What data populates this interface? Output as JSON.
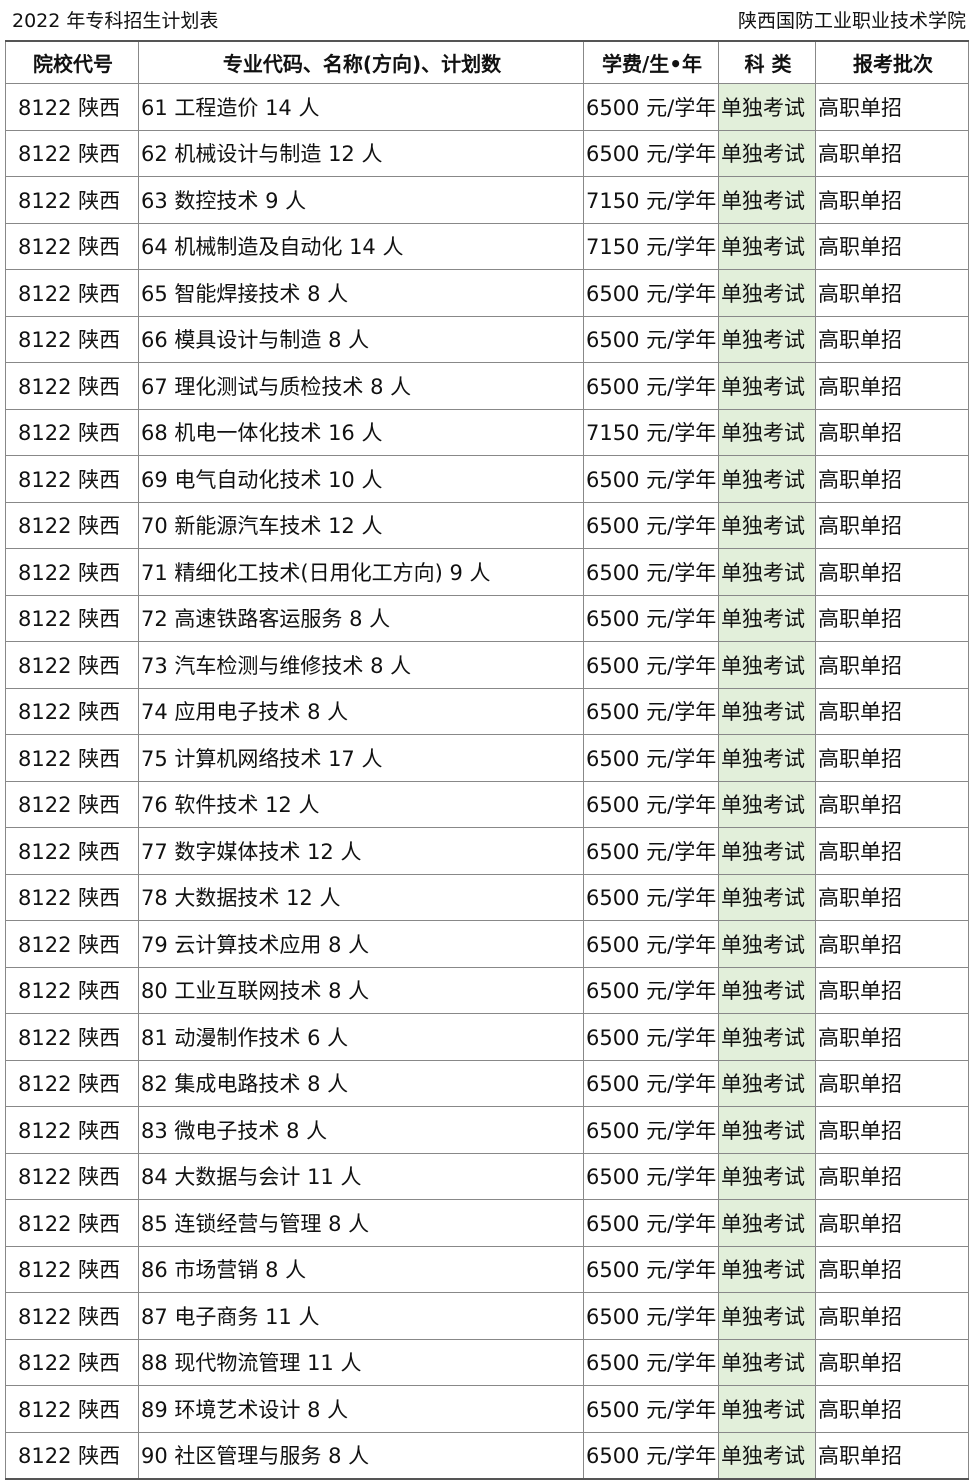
{
  "header": {
    "title": "2022 年专科招生计划表",
    "school": "陕西国防工业职业技术学院"
  },
  "table": {
    "columns": [
      "院校代号",
      "专业代码、名称(方向)、计划数",
      "学费/生•年",
      "科 类",
      "报考批次"
    ],
    "highlight_color": "#e2efda",
    "rows": [
      [
        "8122 陕西",
        "61 工程造价 14 人",
        "6500 元/学年",
        "单独考试",
        "高职单招"
      ],
      [
        "8122 陕西",
        "62 机械设计与制造 12 人",
        "6500 元/学年",
        "单独考试",
        "高职单招"
      ],
      [
        "8122 陕西",
        "63 数控技术 9 人",
        "7150 元/学年",
        "单独考试",
        "高职单招"
      ],
      [
        "8122 陕西",
        "64 机械制造及自动化 14 人",
        "7150 元/学年",
        "单独考试",
        "高职单招"
      ],
      [
        "8122 陕西",
        "65 智能焊接技术 8 人",
        "6500 元/学年",
        "单独考试",
        "高职单招"
      ],
      [
        "8122 陕西",
        "66 模具设计与制造 8 人",
        "6500 元/学年",
        "单独考试",
        "高职单招"
      ],
      [
        "8122 陕西",
        "67 理化测试与质检技术 8 人",
        "6500 元/学年",
        "单独考试",
        "高职单招"
      ],
      [
        "8122 陕西",
        "68 机电一体化技术 16 人",
        "7150 元/学年",
        "单独考试",
        "高职单招"
      ],
      [
        "8122 陕西",
        "69 电气自动化技术 10 人",
        "6500 元/学年",
        "单独考试",
        "高职单招"
      ],
      [
        "8122 陕西",
        "70 新能源汽车技术 12 人",
        "6500 元/学年",
        "单独考试",
        "高职单招"
      ],
      [
        "8122 陕西",
        "71 精细化工技术(日用化工方向) 9 人",
        "6500 元/学年",
        "单独考试",
        "高职单招"
      ],
      [
        "8122 陕西",
        "72 高速铁路客运服务 8 人",
        "6500 元/学年",
        "单独考试",
        "高职单招"
      ],
      [
        "8122 陕西",
        "73 汽车检测与维修技术 8 人",
        "6500 元/学年",
        "单独考试",
        "高职单招"
      ],
      [
        "8122 陕西",
        "74 应用电子技术 8 人",
        "6500 元/学年",
        "单独考试",
        "高职单招"
      ],
      [
        "8122 陕西",
        "75 计算机网络技术 17 人",
        "6500 元/学年",
        "单独考试",
        "高职单招"
      ],
      [
        "8122 陕西",
        "76 软件技术 12 人",
        "6500 元/学年",
        "单独考试",
        "高职单招"
      ],
      [
        "8122 陕西",
        "77 数字媒体技术 12 人",
        "6500 元/学年",
        "单独考试",
        "高职单招"
      ],
      [
        "8122 陕西",
        "78 大数据技术 12 人",
        "6500 元/学年",
        "单独考试",
        "高职单招"
      ],
      [
        "8122 陕西",
        "79 云计算技术应用 8 人",
        "6500 元/学年",
        "单独考试",
        "高职单招"
      ],
      [
        "8122 陕西",
        "80 工业互联网技术 8 人",
        "6500 元/学年",
        "单独考试",
        "高职单招"
      ],
      [
        "8122 陕西",
        "81 动漫制作技术 6 人",
        "6500 元/学年",
        "单独考试",
        "高职单招"
      ],
      [
        "8122 陕西",
        "82 集成电路技术 8 人",
        "6500 元/学年",
        "单独考试",
        "高职单招"
      ],
      [
        "8122 陕西",
        "83 微电子技术 8 人",
        "6500 元/学年",
        "单独考试",
        "高职单招"
      ],
      [
        "8122 陕西",
        "84 大数据与会计 11 人",
        "6500 元/学年",
        "单独考试",
        "高职单招"
      ],
      [
        "8122 陕西",
        "85 连锁经营与管理 8 人",
        "6500 元/学年",
        "单独考试",
        "高职单招"
      ],
      [
        "8122 陕西",
        "86 市场营销 8 人",
        "6500 元/学年",
        "单独考试",
        "高职单招"
      ],
      [
        "8122 陕西",
        "87 电子商务 11 人",
        "6500 元/学年",
        "单独考试",
        "高职单招"
      ],
      [
        "8122 陕西",
        "88 现代物流管理 11 人",
        "6500 元/学年",
        "单独考试",
        "高职单招"
      ],
      [
        "8122 陕西",
        "89 环境艺术设计 8 人",
        "6500 元/学年",
        "单独考试",
        "高职单招"
      ],
      [
        "8122 陕西",
        "90 社区管理与服务 8 人",
        "6500 元/学年",
        "单独考试",
        "高职单招"
      ]
    ]
  }
}
